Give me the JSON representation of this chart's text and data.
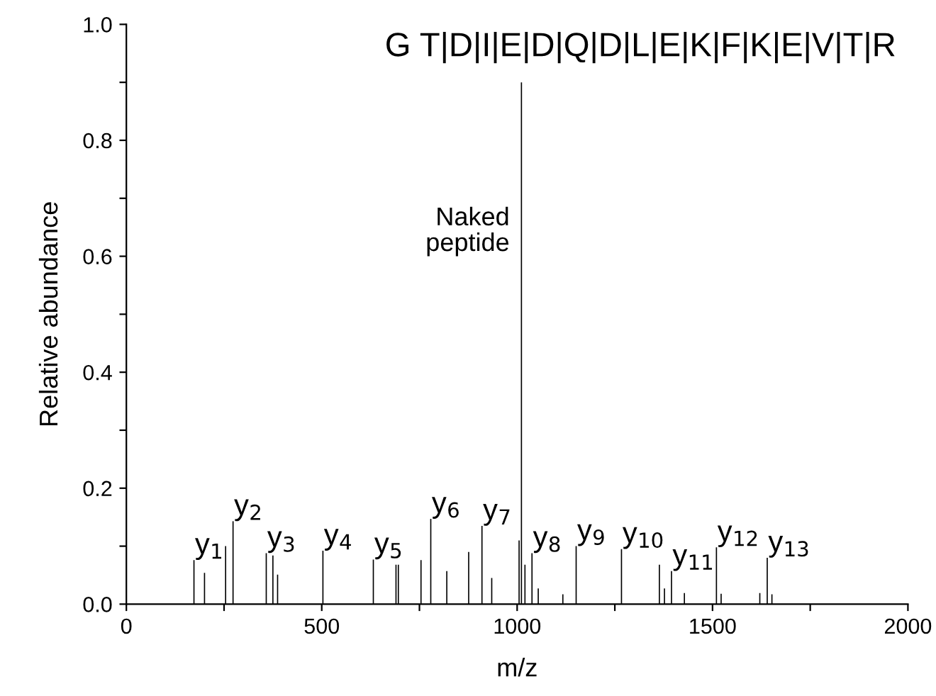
{
  "chart_data": {
    "type": "bar",
    "xlabel": "m/z",
    "ylabel": "Relative abundance",
    "x": [
      173,
      200,
      254,
      273,
      358,
      375,
      387,
      503,
      632,
      690,
      696,
      754,
      779,
      820,
      876,
      910,
      935,
      1005,
      1011,
      1020,
      1038,
      1054,
      1117,
      1151,
      1267,
      1364,
      1377,
      1395,
      1428,
      1510,
      1522,
      1621,
      1640,
      1652
    ],
    "values": [
      0.076,
      0.054,
      0.1,
      0.143,
      0.088,
      0.084,
      0.051,
      0.092,
      0.077,
      0.068,
      0.068,
      0.076,
      0.147,
      0.057,
      0.09,
      0.135,
      0.045,
      0.11,
      0.9,
      0.068,
      0.088,
      0.027,
      0.017,
      0.1,
      0.095,
      0.068,
      0.027,
      0.057,
      0.019,
      0.098,
      0.018,
      0.019,
      0.08,
      0.017
    ],
    "color": "#000000",
    "xlim": [
      0,
      2000
    ],
    "ylim": [
      0,
      1.0
    ],
    "xticks": [
      0,
      {
        "value": 250,
        "label": null
      },
      500,
      {
        "value": 750,
        "label": null
      },
      1000,
      {
        "value": 1250,
        "label": null
      },
      1500,
      {
        "value": 1750,
        "label": null
      },
      2000
    ],
    "yticks": [
      {
        "value": 0,
        "label": "0.0"
      },
      {
        "value": 0.1,
        "label": null
      },
      0.2,
      {
        "value": 0.3,
        "label": null
      },
      0.4,
      {
        "value": 0.5,
        "label": null
      },
      0.6,
      {
        "value": 0.7,
        "label": null
      },
      0.8,
      {
        "value": 0.9,
        "label": null
      },
      {
        "value": 1.0,
        "label": "1.0"
      }
    ],
    "grid": false,
    "legend": false,
    "annotations": [
      {
        "text": "y$_{1}$",
        "x": 173,
        "y": 0.076
      },
      {
        "text": "y$_{2}$",
        "x": 273,
        "y": 0.143
      },
      {
        "text": "y$_{3}$",
        "x": 358,
        "y": 0.088
      },
      {
        "text": "y$_{4}$",
        "x": 503,
        "y": 0.092
      },
      {
        "text": "y$_{5}$",
        "x": 632,
        "y": 0.077
      },
      {
        "text": "y$_{6}$",
        "x": 779,
        "y": 0.147
      },
      {
        "text": "y$_{7}$",
        "x": 910,
        "y": 0.135
      },
      {
        "text": "y$_{8}$",
        "x": 1038,
        "y": 0.088
      },
      {
        "text": "y$_{9}$",
        "x": 1151,
        "y": 0.1
      },
      {
        "text": "y$_{10}$",
        "x": 1267,
        "y": 0.095
      },
      {
        "text": "y$_{11}$",
        "x": 1395,
        "y": 0.057
      },
      {
        "text": "y$_{12}$",
        "x": 1510,
        "y": 0.098
      },
      {
        "text": "y$_{13}$",
        "x": 1640,
        "y": 0.08
      },
      {
        "text": "Naked\npeptide",
        "x": 1011,
        "y": 0.6
      },
      "G T|D|I|E|D|Q|D|L|E|K|F|K|E|V|T|R"
    ]
  }
}
